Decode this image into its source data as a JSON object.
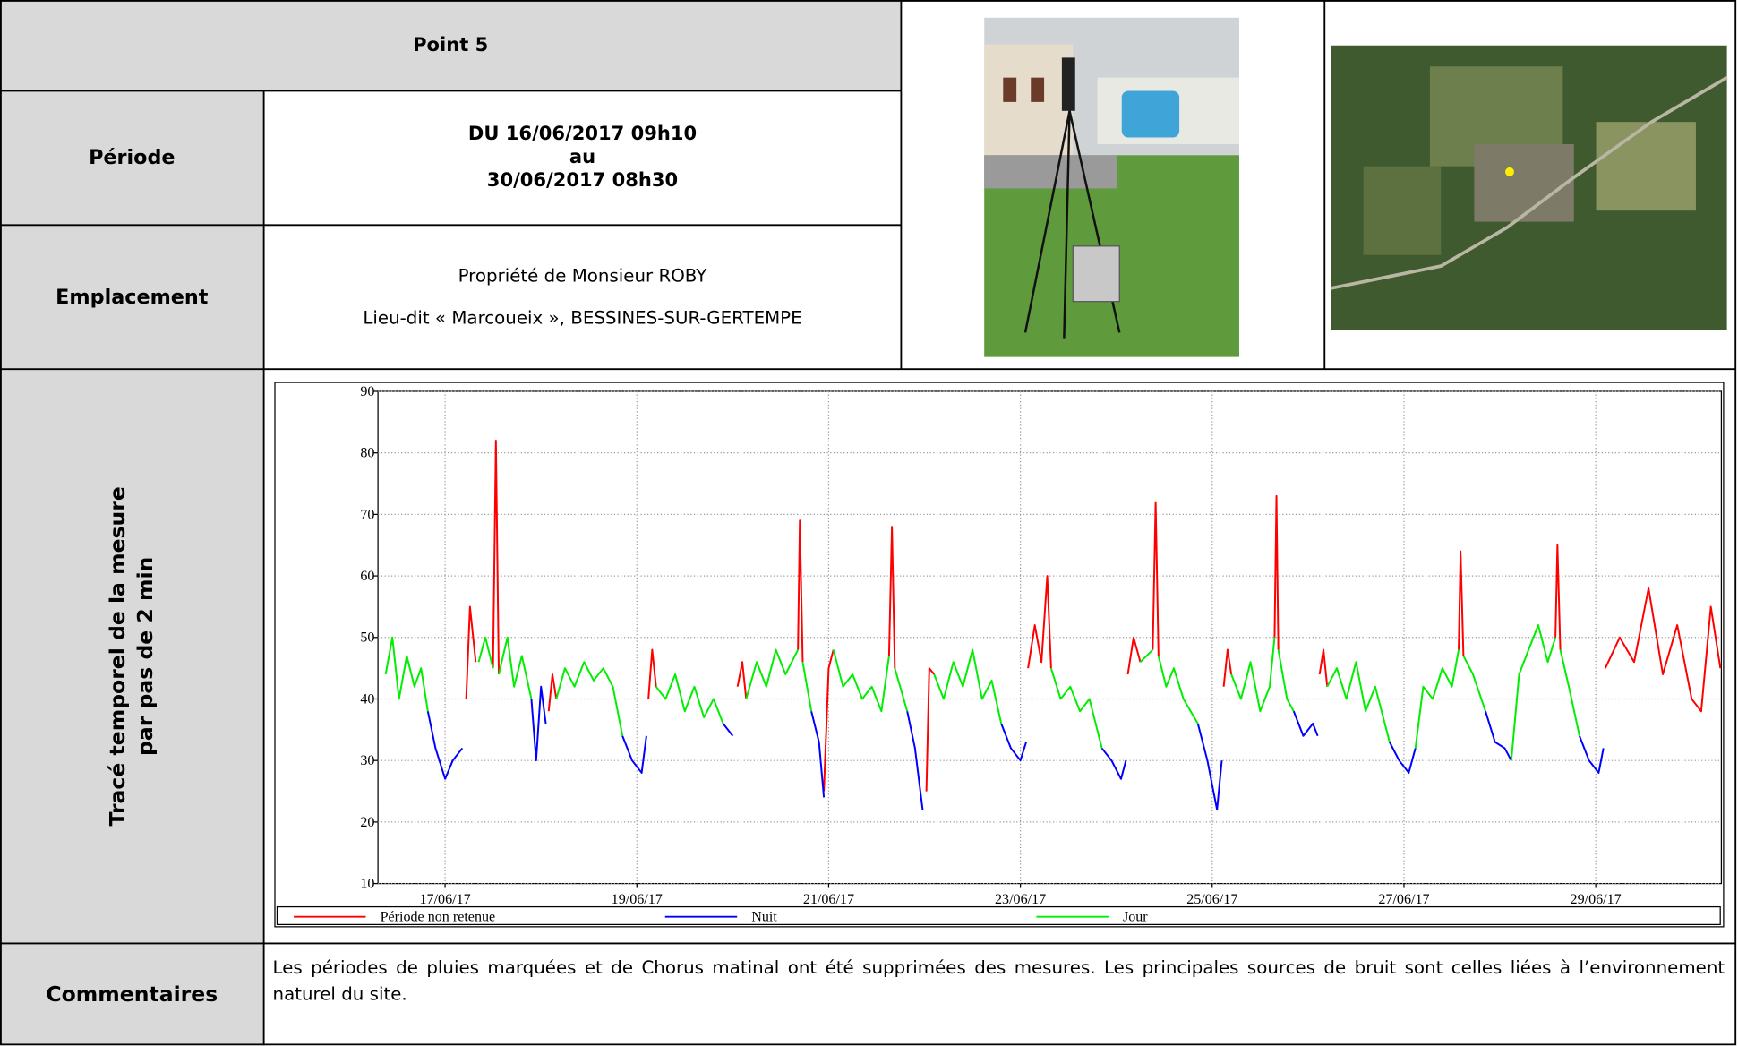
{
  "point": "Point 5",
  "periode": {
    "label": "Période",
    "lines": [
      "DU 16/06/2017 09h10",
      "au",
      "30/06/2017 08h30"
    ]
  },
  "emplacement": {
    "label": "Emplacement",
    "lines": [
      "Propriété de Monsieur ROBY",
      "Lieu-dit « Marcoueix », BESSINES-SUR-GERTEMPE"
    ]
  },
  "trace": {
    "label_lines": [
      "Tracé temporel de la mesure",
      "par pas de 2 min"
    ]
  },
  "commentaires": {
    "label": "Commentaires",
    "text": "Les périodes de pluies marquées et de Chorus matinal ont été supprimées des mesures. Les principales sources de bruit sont celles liées à l’environnement naturel du site."
  },
  "chart_data": {
    "type": "line",
    "xlim": [
      16.3,
      30.31
    ],
    "xticks": [
      {
        "value": 17,
        "label": "17/06/17"
      },
      {
        "value": 19,
        "label": "19/06/17"
      },
      {
        "value": 21,
        "label": "21/06/17"
      },
      {
        "value": 23,
        "label": "23/06/17"
      },
      {
        "value": 25,
        "label": "25/06/17"
      },
      {
        "value": 27,
        "label": "27/06/17"
      },
      {
        "value": 29,
        "label": "29/06/17"
      }
    ],
    "ylim": [
      10,
      90
    ],
    "yticks": [
      10,
      20,
      30,
      40,
      50,
      60,
      70,
      80,
      90
    ],
    "grid": true,
    "legend": "bottom",
    "series": [
      {
        "name": "Période non retenue",
        "color": "#ff0000",
        "x": [
          17.22,
          17.26,
          17.32,
          null,
          17.5,
          17.53,
          17.56,
          null,
          18.08,
          18.12,
          18.16,
          null,
          19.12,
          19.16,
          19.2,
          null,
          20.05,
          20.1,
          20.14,
          null,
          20.68,
          20.7,
          20.73,
          null,
          20.95,
          21.0,
          21.05,
          null,
          21.63,
          21.66,
          21.69,
          null,
          22.02,
          22.05,
          22.1,
          null,
          23.08,
          23.15,
          23.22,
          23.28,
          23.32,
          null,
          24.12,
          24.18,
          24.25,
          null,
          24.38,
          24.41,
          24.44,
          null,
          25.12,
          25.16,
          25.2,
          null,
          25.65,
          25.67,
          25.69,
          null,
          26.12,
          26.16,
          26.2,
          null,
          27.57,
          27.59,
          27.62,
          null,
          28.58,
          28.6,
          28.63,
          null,
          29.1,
          29.25,
          29.4,
          29.55,
          29.7,
          29.85,
          30.0,
          30.1,
          30.2,
          30.3
        ],
        "values": [
          40,
          55,
          46,
          null,
          45,
          82,
          44,
          null,
          38,
          44,
          40,
          null,
          40,
          48,
          42,
          null,
          42,
          46,
          40,
          null,
          48,
          69,
          46,
          null,
          25,
          45,
          48,
          null,
          47,
          68,
          45,
          null,
          25,
          45,
          44,
          null,
          45,
          52,
          46,
          60,
          45,
          null,
          44,
          50,
          46,
          null,
          48,
          72,
          47,
          null,
          42,
          48,
          44,
          null,
          50,
          73,
          48,
          null,
          44,
          48,
          42,
          null,
          48,
          64,
          47,
          null,
          50,
          65,
          48,
          null,
          45,
          50,
          46,
          58,
          44,
          52,
          40,
          38,
          55,
          45
        ]
      },
      {
        "name": "Nuit",
        "color": "#0000ff",
        "x": [
          16.82,
          16.9,
          17.0,
          17.08,
          17.18,
          null,
          17.9,
          17.95,
          18.0,
          18.05,
          null,
          18.85,
          18.95,
          19.05,
          19.1,
          null,
          19.9,
          20.0,
          null,
          20.82,
          20.9,
          20.95,
          null,
          21.82,
          21.9,
          21.98,
          null,
          22.8,
          22.9,
          23.0,
          23.06,
          null,
          23.85,
          23.95,
          24.05,
          24.1,
          null,
          24.85,
          24.95,
          25.05,
          25.1,
          null,
          25.85,
          25.95,
          26.05,
          26.1,
          null,
          26.85,
          26.95,
          27.05,
          27.12,
          null,
          27.85,
          27.95,
          28.05,
          28.12,
          null,
          28.83,
          28.93,
          29.03,
          29.08
        ],
        "values": [
          38,
          32,
          27,
          30,
          32,
          null,
          40,
          30,
          42,
          36,
          null,
          34,
          30,
          28,
          34,
          null,
          36,
          34,
          null,
          38,
          33,
          24,
          null,
          38,
          32,
          22,
          null,
          36,
          32,
          30,
          33,
          null,
          32,
          30,
          27,
          30,
          null,
          36,
          30,
          22,
          30,
          null,
          38,
          34,
          36,
          34,
          null,
          33,
          30,
          28,
          32,
          null,
          38,
          33,
          32,
          30,
          null,
          34,
          30,
          28,
          32
        ]
      },
      {
        "name": "Jour",
        "color": "#00ee00",
        "x": [
          16.38,
          16.45,
          16.52,
          16.6,
          16.68,
          16.75,
          16.82,
          null,
          17.35,
          17.42,
          17.5,
          null,
          17.56,
          17.65,
          17.72,
          17.8,
          17.9,
          null,
          18.16,
          18.25,
          18.35,
          18.45,
          18.55,
          18.65,
          18.75,
          18.85,
          null,
          19.2,
          19.3,
          19.4,
          19.5,
          19.6,
          19.7,
          19.8,
          19.9,
          null,
          20.14,
          20.25,
          20.35,
          20.45,
          20.55,
          20.68,
          null,
          20.73,
          20.82,
          null,
          21.05,
          21.15,
          21.25,
          21.35,
          21.45,
          21.55,
          21.63,
          null,
          21.69,
          21.82,
          null,
          22.1,
          22.2,
          22.3,
          22.4,
          22.5,
          22.6,
          22.7,
          22.8,
          null,
          23.32,
          23.42,
          23.52,
          23.62,
          23.72,
          23.85,
          null,
          24.25,
          24.38,
          null,
          24.44,
          24.52,
          24.6,
          24.7,
          24.85,
          null,
          25.2,
          25.3,
          25.4,
          25.5,
          25.6,
          25.65,
          null,
          25.69,
          25.78,
          25.85,
          null,
          26.2,
          26.3,
          26.4,
          26.5,
          26.6,
          26.7,
          26.85,
          null,
          27.12,
          27.2,
          27.3,
          27.4,
          27.5,
          27.57,
          null,
          27.62,
          27.72,
          27.85,
          null,
          28.12,
          28.2,
          28.3,
          28.4,
          28.5,
          28.58,
          null,
          28.63,
          28.72,
          28.83
        ],
        "values": [
          44,
          50,
          40,
          47,
          42,
          45,
          38,
          null,
          46,
          50,
          45,
          null,
          44,
          50,
          42,
          47,
          40,
          null,
          40,
          45,
          42,
          46,
          43,
          45,
          42,
          34,
          null,
          42,
          40,
          44,
          38,
          42,
          37,
          40,
          36,
          null,
          40,
          46,
          42,
          48,
          44,
          48,
          null,
          46,
          38,
          null,
          48,
          42,
          44,
          40,
          42,
          38,
          47,
          null,
          45,
          38,
          null,
          44,
          40,
          46,
          42,
          48,
          40,
          43,
          36,
          null,
          45,
          40,
          42,
          38,
          40,
          32,
          null,
          46,
          48,
          null,
          47,
          42,
          45,
          40,
          36,
          null,
          44,
          40,
          46,
          38,
          42,
          50,
          null,
          48,
          40,
          38,
          null,
          42,
          45,
          40,
          46,
          38,
          42,
          33,
          null,
          32,
          42,
          40,
          45,
          42,
          48,
          null,
          47,
          44,
          38,
          null,
          30,
          44,
          48,
          52,
          46,
          50,
          null,
          48,
          42,
          34
        ]
      }
    ]
  }
}
